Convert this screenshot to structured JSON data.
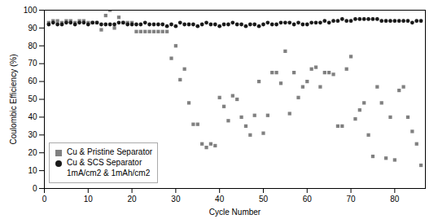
{
  "chart_data": {
    "type": "scatter",
    "xlabel": "Cycle Number",
    "ylabel": "Coulombic Efficiency (%)",
    "xlim": [
      0,
      87
    ],
    "ylim": [
      0,
      100
    ],
    "xticks": [
      0,
      10,
      20,
      30,
      40,
      50,
      60,
      70,
      80
    ],
    "yticks": [
      0,
      10,
      20,
      30,
      40,
      50,
      60,
      70,
      80,
      90,
      100
    ],
    "grid": false,
    "legend": "lower left",
    "x": [
      1,
      2,
      3,
      4,
      5,
      6,
      7,
      8,
      9,
      10,
      11,
      12,
      13,
      14,
      15,
      16,
      17,
      18,
      19,
      20,
      21,
      22,
      23,
      24,
      25,
      26,
      27,
      28,
      29,
      30,
      31,
      32,
      33,
      34,
      35,
      36,
      37,
      38,
      39,
      40,
      41,
      42,
      43,
      44,
      45,
      46,
      47,
      48,
      49,
      50,
      51,
      52,
      53,
      54,
      55,
      56,
      57,
      58,
      59,
      60,
      61,
      62,
      63,
      64,
      65,
      66,
      67,
      68,
      69,
      70,
      71,
      72,
      73,
      74,
      75,
      76,
      77,
      78,
      79,
      80,
      81,
      82,
      83,
      84,
      85,
      86
    ],
    "series": [
      {
        "name": "Cu & Pristine Separator",
        "color": "#808080",
        "marker": "square",
        "values": [
          93,
          94,
          94,
          93,
          94,
          94,
          93,
          94,
          94,
          93,
          93,
          93,
          89,
          97,
          100,
          90,
          96,
          93,
          93,
          93,
          88,
          88,
          88,
          88,
          88,
          88,
          88,
          88,
          73,
          80,
          61,
          67,
          48,
          36,
          36,
          25,
          23,
          25,
          24,
          51,
          46,
          38,
          52,
          50,
          40,
          35,
          30,
          41,
          60,
          31,
          41,
          65,
          65,
          59,
          77,
          42,
          65,
          51,
          57,
          60,
          67,
          68,
          57,
          65,
          65,
          64,
          35,
          35,
          67,
          74,
          39,
          44,
          48,
          30,
          18,
          57,
          48,
          17,
          40,
          16,
          55,
          57,
          40,
          32,
          25,
          13
        ]
      },
      {
        "name": "Cu & SCS Separator\n1mA/cm2 & 1mAh/cm2",
        "color": "#1a1a1a",
        "marker": "circle",
        "values": [
          92,
          93,
          92,
          92,
          93,
          93,
          92,
          93,
          93,
          92,
          93,
          93,
          92,
          92,
          92,
          92,
          93,
          93,
          92,
          92,
          92,
          92,
          93,
          92,
          92,
          92,
          92,
          91,
          92,
          91,
          93,
          92,
          92,
          92,
          91,
          92,
          93,
          92,
          92,
          91,
          92,
          92,
          93,
          92,
          92,
          91,
          92,
          92,
          91,
          92,
          93,
          92,
          92,
          93,
          93,
          93,
          92,
          93,
          92,
          92,
          93,
          93,
          93,
          94,
          93,
          94,
          94,
          95,
          94,
          94,
          95,
          95,
          95,
          95,
          95,
          95,
          94,
          94,
          94,
          94,
          94,
          94,
          94,
          93,
          94,
          94
        ]
      }
    ]
  }
}
